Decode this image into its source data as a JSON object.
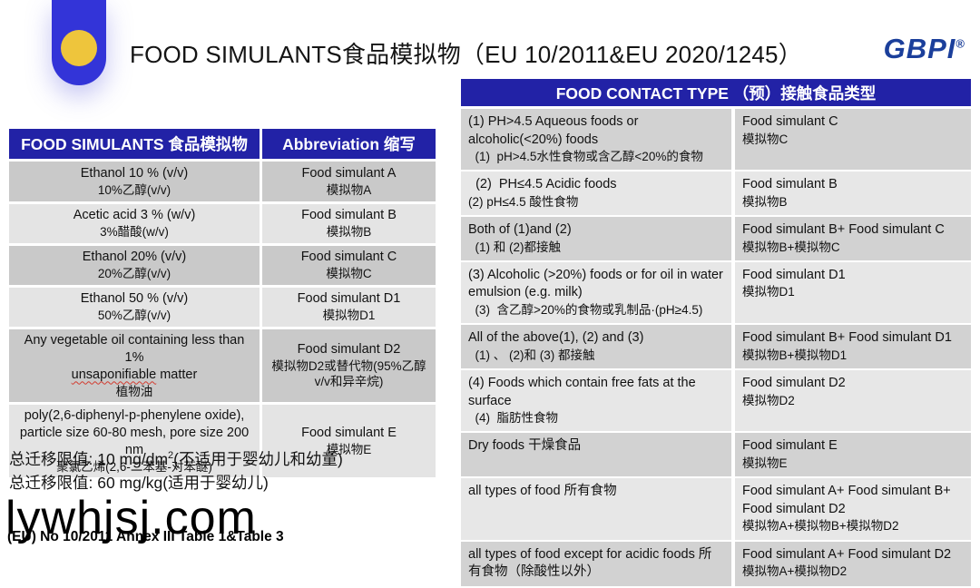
{
  "header": {
    "title": "FOOD SIMULANTS食品模拟物（EU 10/2011&EU 2020/1245）",
    "logo_text": "GBPI",
    "logo_reg": "®"
  },
  "colors": {
    "table_header_blue": "#2222a6",
    "deco_pill_blue": "#3334d8",
    "deco_circle_yellow": "#eec53c",
    "logo_blue": "#1b3f9b",
    "row_dark_gray": "#c9c9c9",
    "row_light_gray": "#e4e4e4"
  },
  "left_table": {
    "header": {
      "col1": "FOOD SIMULANTS 食品模拟物",
      "col2": "Abbreviation 缩写"
    },
    "rows": [
      {
        "en": "Ethanol 10 % (v/v)",
        "zh": "10%乙醇(v/v)",
        "abbr_en": "Food simulant A",
        "abbr_zh": "模拟物A"
      },
      {
        "en": "Acetic acid 3 % (w/v)",
        "zh": "3%醋酸(w/v)",
        "abbr_en": "Food simulant B",
        "abbr_zh": "模拟物B"
      },
      {
        "en": "Ethanol 20% (v/v)",
        "zh": "20%乙醇(v/v)",
        "abbr_en": "Food simulant C",
        "abbr_zh": "模拟物C"
      },
      {
        "en": "Ethanol 50 % (v/v)",
        "zh": "50%乙醇(v/v)",
        "abbr_en": "Food simulant D1",
        "abbr_zh": "模拟物D1"
      },
      {
        "en_line1": "Any vegetable oil containing less than 1%",
        "en_underlined": "unsaponifiable",
        "en_rest": " matter",
        "zh": "植物油",
        "abbr_en": "Food simulant D2",
        "abbr_zh": "模拟物D2或替代物(95%乙醇v/v和异辛烷)"
      },
      {
        "en": "poly(2,6-diphenyl-p-phenylene oxide), particle size 60-80 mesh, pore size 200 nm",
        "zh": "聚氯乙烯(2,6-二苯基-对苯醚)",
        "abbr_en": "Food simulant E",
        "abbr_zh": "模拟物E"
      }
    ]
  },
  "right_table": {
    "header": "FOOD CONTACT TYPE （预）接触食品类型",
    "rows": [
      {
        "type_en": "(1) PH>4.5 Aqueous foods or alcoholic(<20%) foods",
        "type_zh": "  (1)  pH>4.5水性食物或含乙醇<20%的食物",
        "sim_en": "Food simulant C",
        "sim_zh": "模拟物C"
      },
      {
        "type_en": "  (2)  PH≤4.5 Acidic foods",
        "type_zh": "(2) pH≤4.5 酸性食物",
        "sim_en": "Food simulant B",
        "sim_zh": "模拟物B"
      },
      {
        "type_en": "Both of (1)and (2)",
        "type_zh": "  (1) 和 (2)都接触",
        "sim_en": "Food simulant B+ Food simulant C",
        "sim_zh": "模拟物B+模拟物C"
      },
      {
        "type_en": "(3) Alcoholic (>20%) foods or for oil in water emulsion (e.g. milk)",
        "type_zh": "  (3)  含乙醇>20%的食物或乳制品·(pH≥4.5)",
        "sim_en": "Food simulant D1",
        "sim_zh": "模拟物D1"
      },
      {
        "type_en": "All of the above(1), (2) and (3)",
        "type_zh": "  (1) 、 (2)和 (3) 都接触",
        "sim_en": "Food simulant B+ Food simulant D1",
        "sim_zh": "模拟物B+模拟物D1"
      },
      {
        "type_en": "(4) Foods which contain free fats at the surface",
        "type_zh": "  (4)  脂肪性食物",
        "sim_en": "Food simulant D2",
        "sim_zh": "模拟物D2"
      },
      {
        "type_en": "Dry foods 干燥食品",
        "type_zh": "",
        "sim_en": "Food simulant E",
        "sim_zh": "模拟物E"
      },
      {
        "type_en": "all types of food 所有食物",
        "type_zh": "",
        "sim_en": "Food simulant A+ Food simulant B+ Food simulant D2",
        "sim_zh": "模拟物A+模拟物B+模拟物D2"
      },
      {
        "type_en": "all types of food except for acidic foods 所有食物（除酸性以外）",
        "type_zh": "",
        "sim_en": "Food simulant A+ Food simulant D2",
        "sim_zh": "模拟物A+模拟物D2"
      }
    ]
  },
  "notes": {
    "line1_pre": "总迁移限值: 10 mg/dm",
    "line1_sup": "2",
    "line1_post": "(不适用于婴幼儿和幼童)",
    "line2": "总迁移限值: 60 mg/kg(适用于婴幼儿)"
  },
  "watermark": "lywhjsj.com",
  "footnote": "(EU) No 10/2011 Annex III Table 1&Table 3"
}
